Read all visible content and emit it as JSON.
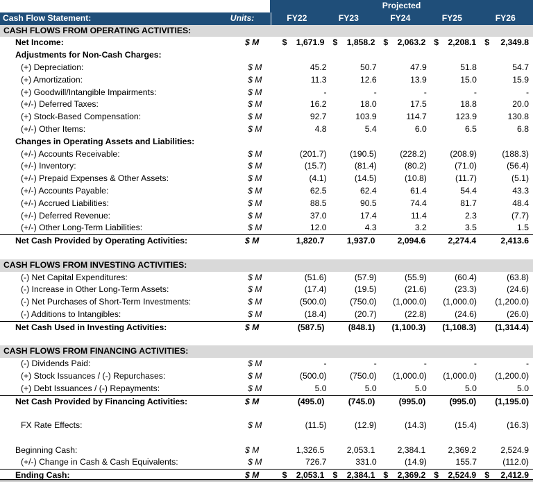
{
  "header": {
    "title": "Cash Flow Statement:",
    "units_label": "Units:",
    "projected_label": "Projected",
    "years": [
      "FY22",
      "FY23",
      "FY24",
      "FY25",
      "FY26"
    ]
  },
  "colors": {
    "header_bg": "#1F4E79",
    "section_bg": "#D9D9D9"
  },
  "rows": [
    {
      "type": "section",
      "label": "CASH FLOWS FROM OPERATING ACTIVITIES:"
    },
    {
      "type": "bold",
      "label": "Net Income:",
      "units": "$ M",
      "dollar": true,
      "values": [
        "1,671.9",
        "1,858.2",
        "2,063.2",
        "2,208.1",
        "2,349.8"
      ]
    },
    {
      "type": "subhead",
      "label": "Adjustments for Non-Cash Charges:"
    },
    {
      "type": "item",
      "label": "(+) Depreciation:",
      "units": "$ M",
      "values": [
        "45.2",
        "50.7",
        "47.9",
        "51.8",
        "54.7"
      ]
    },
    {
      "type": "item",
      "label": "(+) Amortization:",
      "units": "$ M",
      "values": [
        "11.3",
        "12.6",
        "13.9",
        "15.0",
        "15.9"
      ]
    },
    {
      "type": "item",
      "label": "(+) Goodwill/Intangible Impairments:",
      "units": "$ M",
      "values": [
        "-",
        "-",
        "-",
        "-",
        "-"
      ]
    },
    {
      "type": "item",
      "label": "(+/-) Deferred Taxes:",
      "units": "$ M",
      "values": [
        "16.2",
        "18.0",
        "17.5",
        "18.8",
        "20.0"
      ]
    },
    {
      "type": "item",
      "label": "(+) Stock-Based Compensation:",
      "units": "$ M",
      "values": [
        "92.7",
        "103.9",
        "114.7",
        "123.9",
        "130.8"
      ]
    },
    {
      "type": "item",
      "label": "(+/-) Other Items:",
      "units": "$ M",
      "values": [
        "4.8",
        "5.4",
        "6.0",
        "6.5",
        "6.8"
      ]
    },
    {
      "type": "subhead",
      "label": "Changes in Operating Assets and Liabilities:"
    },
    {
      "type": "item",
      "label": "(+/-) Accounts Receivable:",
      "units": "$ M",
      "values": [
        "(201.7)",
        "(190.5)",
        "(228.2)",
        "(208.9)",
        "(188.3)"
      ]
    },
    {
      "type": "item",
      "label": "(+/-) Inventory:",
      "units": "$ M",
      "values": [
        "(15.7)",
        "(81.4)",
        "(80.2)",
        "(71.0)",
        "(56.4)"
      ]
    },
    {
      "type": "item",
      "label": "(+/-) Prepaid Expenses & Other Assets:",
      "units": "$ M",
      "values": [
        "(4.1)",
        "(14.5)",
        "(10.8)",
        "(11.7)",
        "(5.1)"
      ]
    },
    {
      "type": "item",
      "label": "(+/-) Accounts Payable:",
      "units": "$ M",
      "values": [
        "62.5",
        "62.4",
        "61.4",
        "54.4",
        "43.3"
      ]
    },
    {
      "type": "item",
      "label": "(+/-) Accrued Liabilities:",
      "units": "$ M",
      "values": [
        "88.5",
        "90.5",
        "74.4",
        "81.7",
        "48.4"
      ]
    },
    {
      "type": "item",
      "label": "(+/-) Deferred Revenue:",
      "units": "$ M",
      "values": [
        "37.0",
        "17.4",
        "11.4",
        "2.3",
        "(7.7)"
      ]
    },
    {
      "type": "item",
      "label": "(+/-) Other Long-Term Liabilities:",
      "units": "$ M",
      "values": [
        "12.0",
        "4.3",
        "3.2",
        "3.5",
        "1.5"
      ]
    },
    {
      "type": "total",
      "label": "Net Cash Provided by Operating Activities:",
      "units": "$ M",
      "values": [
        "1,820.7",
        "1,937.0",
        "2,094.6",
        "2,274.4",
        "2,413.6"
      ]
    },
    {
      "type": "blank"
    },
    {
      "type": "section",
      "label": "CASH FLOWS FROM INVESTING ACTIVITIES:"
    },
    {
      "type": "item",
      "label": "(-) Net Capital Expenditures:",
      "units": "$ M",
      "values": [
        "(51.6)",
        "(57.9)",
        "(55.9)",
        "(60.4)",
        "(63.8)"
      ]
    },
    {
      "type": "item",
      "label": "(-) Increase in Other Long-Term Assets:",
      "units": "$ M",
      "values": [
        "(17.4)",
        "(19.5)",
        "(21.6)",
        "(23.3)",
        "(24.6)"
      ]
    },
    {
      "type": "item",
      "label": "(-) Net Purchases of Short-Term Investments:",
      "units": "$ M",
      "values": [
        "(500.0)",
        "(750.0)",
        "(1,000.0)",
        "(1,000.0)",
        "(1,200.0)"
      ]
    },
    {
      "type": "item",
      "label": "(-) Additions to Intangibles:",
      "units": "$ M",
      "values": [
        "(18.4)",
        "(20.7)",
        "(22.8)",
        "(24.6)",
        "(26.0)"
      ]
    },
    {
      "type": "total",
      "label": "Net Cash Used in Investing Activities:",
      "units": "$ M",
      "values": [
        "(587.5)",
        "(848.1)",
        "(1,100.3)",
        "(1,108.3)",
        "(1,314.4)"
      ]
    },
    {
      "type": "blank"
    },
    {
      "type": "section",
      "label": "CASH FLOWS FROM FINANCING ACTIVITIES:"
    },
    {
      "type": "item",
      "label": "(-) Dividends Paid:",
      "units": "$ M",
      "values": [
        "-",
        "-",
        "-",
        "-",
        "-"
      ]
    },
    {
      "type": "item",
      "label": "(+) Stock Issuances / (-) Repurchases:",
      "units": "$ M",
      "values": [
        "(500.0)",
        "(750.0)",
        "(1,000.0)",
        "(1,000.0)",
        "(1,200.0)"
      ]
    },
    {
      "type": "item",
      "label": "(+) Debt Issuances / (-) Repayments:",
      "units": "$ M",
      "values": [
        "5.0",
        "5.0",
        "5.0",
        "5.0",
        "5.0"
      ]
    },
    {
      "type": "total",
      "label": "Net Cash Provided by Financing Activities:",
      "units": "$ M",
      "values": [
        "(495.0)",
        "(745.0)",
        "(995.0)",
        "(995.0)",
        "(1,195.0)"
      ]
    },
    {
      "type": "blank"
    },
    {
      "type": "item",
      "label": "FX Rate Effects:",
      "units": "$ M",
      "values": [
        "(11.5)",
        "(12.9)",
        "(14.3)",
        "(15.4)",
        "(16.3)"
      ]
    },
    {
      "type": "blank"
    },
    {
      "type": "plain",
      "label": "Beginning Cash:",
      "units": "$ M",
      "values": [
        "1,326.5",
        "2,053.1",
        "2,384.1",
        "2,369.2",
        "2,524.9"
      ]
    },
    {
      "type": "item",
      "label": "(+/-) Change in Cash & Cash Equivalents:",
      "units": "$ M",
      "values": [
        "726.7",
        "331.0",
        "(14.9)",
        "155.7",
        "(112.0)"
      ]
    },
    {
      "type": "ending",
      "label": "Ending Cash:",
      "units": "$ M",
      "dollar": true,
      "values": [
        "2,053.1",
        "2,384.1",
        "2,369.2",
        "2,524.9",
        "2,412.9"
      ]
    }
  ],
  "currency_symbol": "$"
}
